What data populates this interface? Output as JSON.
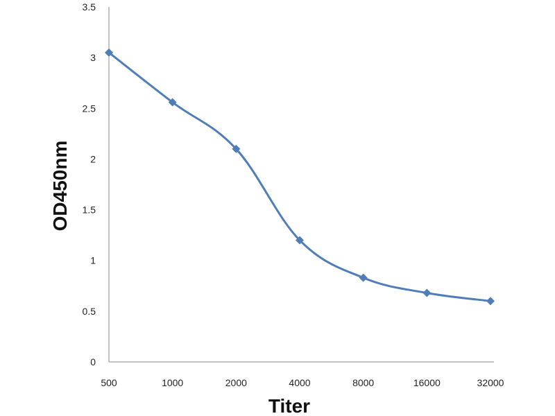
{
  "chart_data": {
    "type": "line",
    "title": "",
    "xlabel": "Titer",
    "ylabel": "OD450nm",
    "categories": [
      "500",
      "1000",
      "2000",
      "4000",
      "8000",
      "16000",
      "32000"
    ],
    "y_ticks": [
      "0",
      "0.5",
      "1",
      "1.5",
      "2",
      "2.5",
      "3",
      "3.5"
    ],
    "ylim": [
      0,
      3.5
    ],
    "grid": false,
    "legend": "none",
    "series": [
      {
        "values": [
          3.05,
          2.56,
          2.1,
          1.2,
          0.83,
          0.68,
          0.6
        ],
        "color": "#4F7DB8",
        "marker": "diamond",
        "smooth": true
      }
    ]
  }
}
